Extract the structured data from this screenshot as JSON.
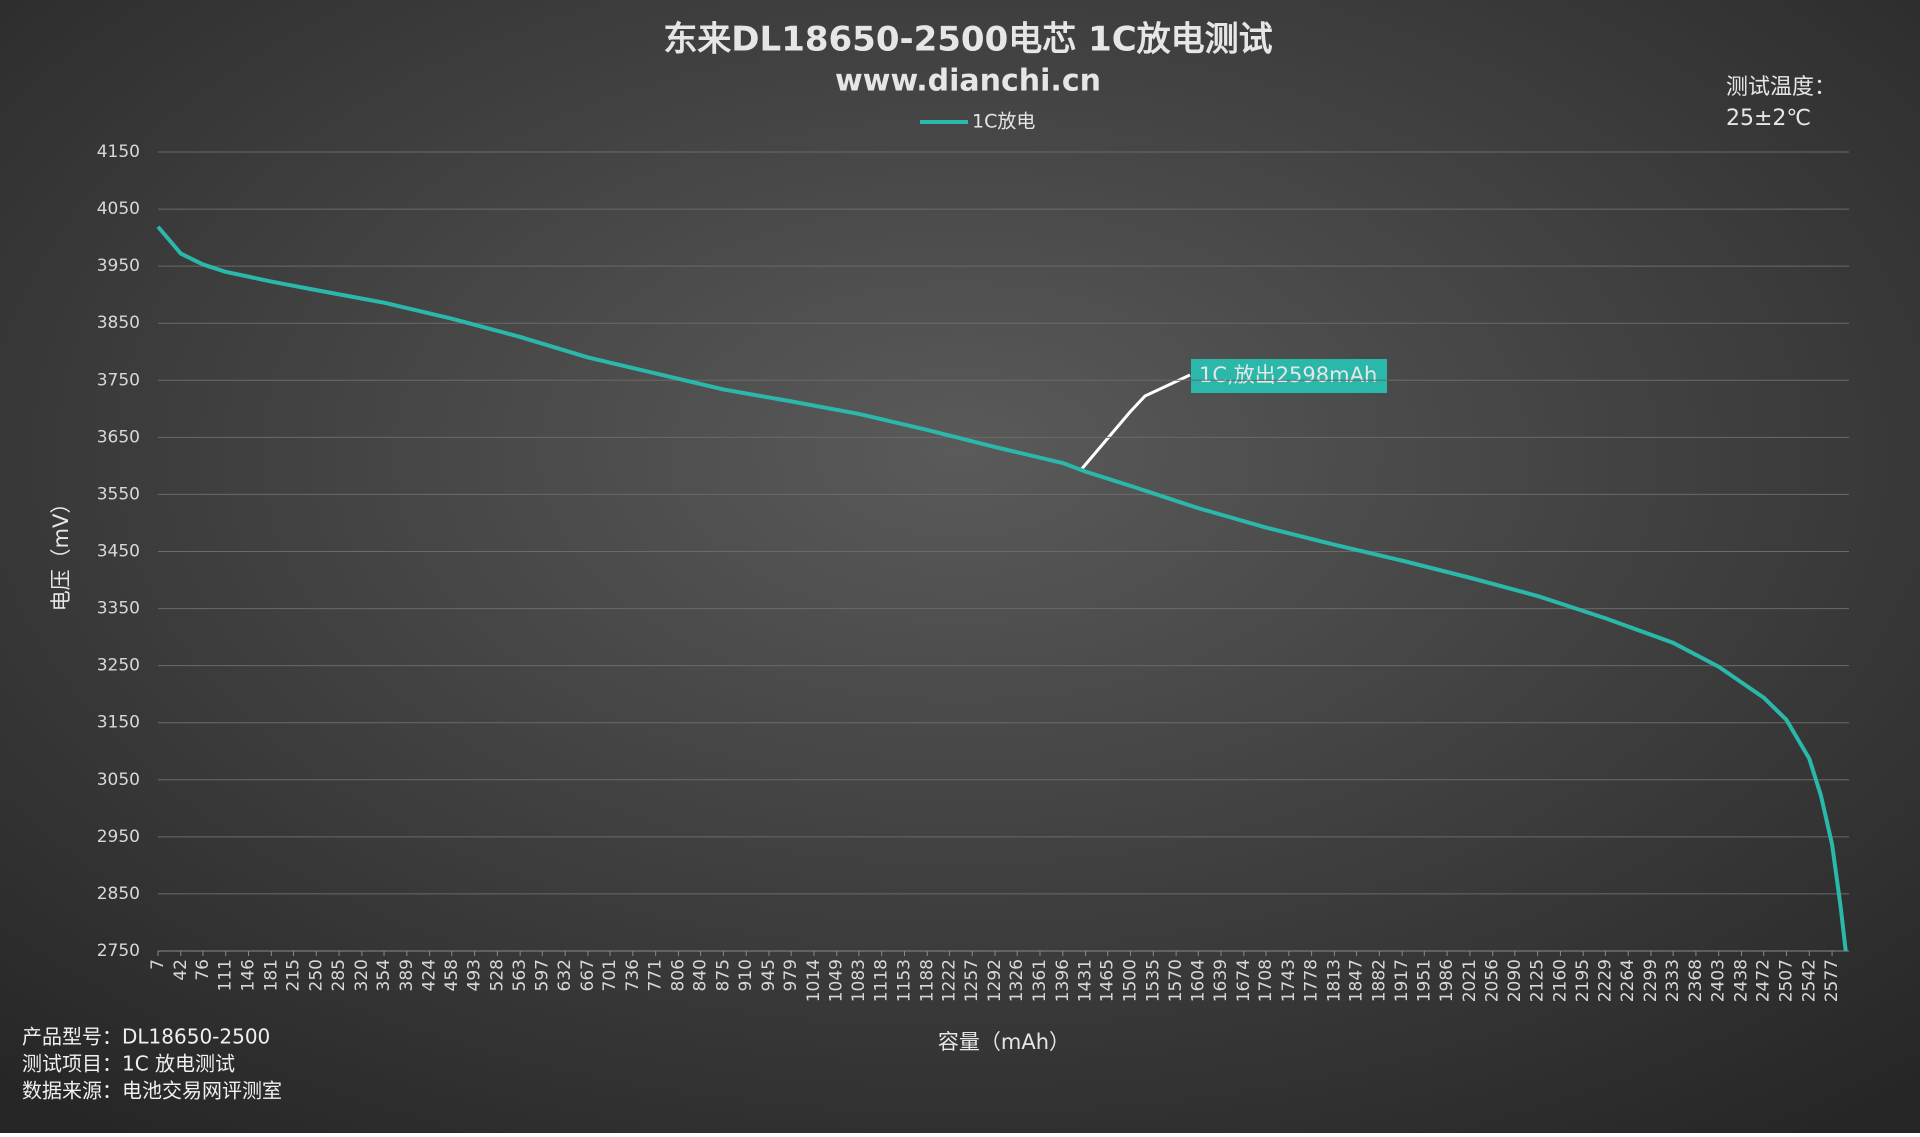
{
  "chart_data": {
    "type": "line",
    "title": "东来DL18650-2500电芯 1C放电测试",
    "subtitle": "www.dianchi.cn",
    "temperature_label": "测试温度：",
    "temperature_value": "25±2℃",
    "annotation": "1C,放出2598mAh",
    "x_label": "容量（mAh）",
    "y_label": "电压（mV）",
    "footer": [
      "产品型号：DL18650-2500",
      "测试项目：1C 放电测试",
      "数据来源：电池交易网评测室"
    ],
    "legend_position": "top",
    "grid": true,
    "x": [
      7,
      42,
      76,
      111,
      181,
      250,
      354,
      458,
      563,
      667,
      771,
      875,
      979,
      1083,
      1188,
      1292,
      1396,
      1431,
      1500,
      1604,
      1708,
      1813,
      1917,
      2021,
      2125,
      2229,
      2333,
      2403,
      2472,
      2507,
      2542,
      2560,
      2577,
      2590,
      2598
    ],
    "series": [
      {
        "name": "1C放电",
        "color": "#2ab8aa",
        "values": [
          4019,
          3972,
          3953,
          3940,
          3923,
          3908,
          3886,
          3858,
          3826,
          3790,
          3762,
          3734,
          3713,
          3691,
          3663,
          3633,
          3605,
          3590,
          3565,
          3526,
          3492,
          3462,
          3434,
          3404,
          3372,
          3333,
          3290,
          3248,
          3194,
          3155,
          3087,
          3022,
          2937,
          2829,
          2750
        ]
      }
    ],
    "xlim": [
      7,
      2603
    ],
    "xticks": [
      7,
      42,
      76,
      111,
      146,
      181,
      215,
      250,
      285,
      320,
      354,
      389,
      424,
      458,
      493,
      528,
      563,
      597,
      632,
      667,
      701,
      736,
      771,
      806,
      840,
      875,
      910,
      945,
      979,
      1014,
      1049,
      1083,
      1118,
      1153,
      1188,
      1222,
      1257,
      1292,
      1326,
      1361,
      1396,
      1431,
      1465,
      1500,
      1535,
      1570,
      1604,
      1639,
      1674,
      1708,
      1743,
      1778,
      1813,
      1847,
      1882,
      1917,
      1951,
      1986,
      2021,
      2056,
      2090,
      2125,
      2160,
      2195,
      2229,
      2264,
      2299,
      2333,
      2368,
      2403,
      2438,
      2472,
      2507,
      2542,
      2577
    ],
    "ylim": [
      2750,
      4150
    ],
    "yticks": [
      2750,
      2850,
      2950,
      3050,
      3150,
      3250,
      3350,
      3450,
      3550,
      3650,
      3750,
      3850,
      3950,
      4050,
      4150
    ]
  }
}
